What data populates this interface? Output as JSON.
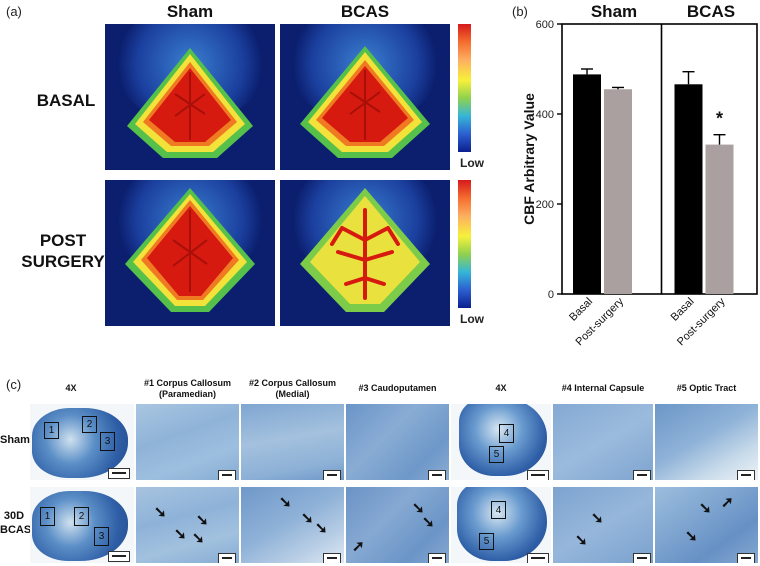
{
  "panel_a": {
    "letter": "(a)",
    "col_labels": [
      "Sham",
      "BCAS"
    ],
    "row_labels": [
      [
        "BASAL"
      ],
      [
        "POST",
        "SURGERY"
      ]
    ],
    "colorbar_low": "Low"
  },
  "panel_b": {
    "letter": "(b)",
    "group_labels": [
      "Sham",
      "BCAS"
    ],
    "ylabel": "CBF Arbitrary Value",
    "significance": "*"
  },
  "chart_data": {
    "type": "bar",
    "ylabel": "CBF Arbitrary Value",
    "ylim": [
      0,
      600
    ],
    "yticks": [
      0,
      200,
      400,
      600
    ],
    "groups": [
      "Sham",
      "BCAS"
    ],
    "categories": [
      "Basal",
      "Post-surgery",
      "Basal",
      "Post-surgery"
    ],
    "values": [
      488,
      455,
      466,
      332
    ],
    "errors": [
      12,
      4,
      28,
      22
    ],
    "colors": [
      "#000000",
      "#aaa09f",
      "#000000",
      "#aaa09f"
    ],
    "annotation": {
      "text": "*",
      "category_index": 3
    }
  },
  "panel_c": {
    "letter": "(c)",
    "col_titles": [
      [
        "4X"
      ],
      [
        "#1 Corpus Callosum",
        "(Paramedian)"
      ],
      [
        "#2 Corpus Callosum",
        "(Medial)"
      ],
      [
        "#3 Caudoputamen"
      ],
      [
        "4X"
      ],
      [
        "#4 Internal Capsule"
      ],
      [
        "#5 Optic Tract"
      ]
    ],
    "row_labels": [
      [
        "Sham"
      ],
      [
        "30D",
        "BCAS"
      ]
    ],
    "roi_labels_left": [
      "1",
      "2",
      "3"
    ],
    "roi_labels_right": [
      "4",
      "5"
    ]
  },
  "colors": {
    "scan_background": "#0b1f6e",
    "bar_basal": "#000000",
    "bar_post": "#aaa09f",
    "stain": "#8fb3d8"
  }
}
